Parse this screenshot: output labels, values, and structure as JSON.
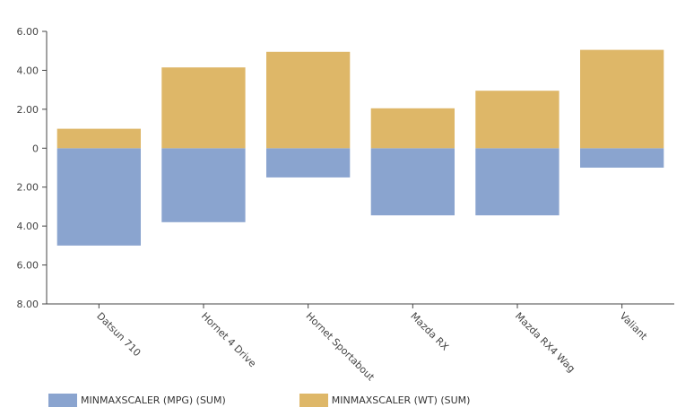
{
  "chart_data": {
    "type": "bar",
    "stacked": true,
    "categories": [
      "Datsun 710",
      "Hornet 4 Drive",
      "Hornet Sportabout",
      "Mazda RX",
      "Mazda RX4 Wag",
      "Valiant"
    ],
    "series": [
      {
        "name": "MINMAXSCALER (MPG) (SUM)",
        "color": "#8aa4cf",
        "values": [
          -5.0,
          -3.8,
          -1.5,
          -3.45,
          -3.45,
          -1.0
        ]
      },
      {
        "name": "MINMAXSCALER (WT) (SUM)",
        "color": "#deb768",
        "values": [
          1.0,
          4.15,
          4.95,
          2.05,
          2.95,
          5.05
        ]
      }
    ],
    "ylim": [
      -8,
      6
    ],
    "yticks": [
      6,
      4,
      2,
      0,
      -2,
      -4,
      -6,
      -8
    ],
    "ytick_labels": [
      "6.00",
      "4.00",
      "2.00",
      "0",
      "2.00",
      "4.00",
      "6.00",
      "8.00"
    ],
    "legend_position": "bottom-left",
    "grid": false
  }
}
